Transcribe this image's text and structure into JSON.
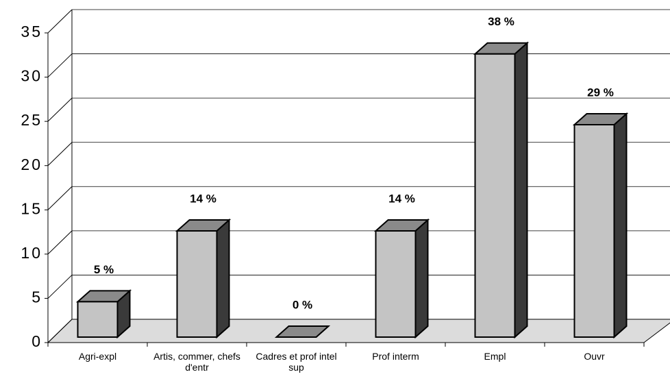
{
  "chart_data": {
    "type": "bar",
    "categories": [
      "Agri-expl",
      "Artis, commer, chefs d'entr",
      "Cadres et prof intel sup",
      "Prof interm",
      "Empl",
      "Ouvr"
    ],
    "values": [
      4,
      12,
      0,
      12,
      32,
      24
    ],
    "value_labels": [
      "5 %",
      "14 %",
      "0 %",
      "14 %",
      "38 %",
      "29 %"
    ],
    "color": "#c4c4c4",
    "ylim": [
      0,
      35
    ],
    "yticks": [
      0,
      5,
      10,
      15,
      20,
      25,
      30,
      35
    ],
    "grid": true
  }
}
